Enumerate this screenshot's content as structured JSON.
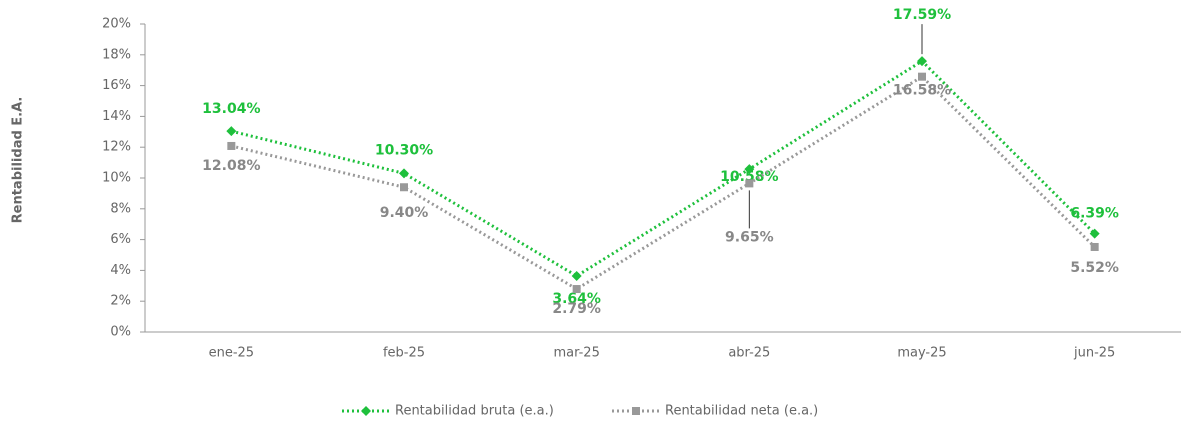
{
  "chart_data": {
    "type": "line",
    "y_label": "Rentabilidad E.A.",
    "categories": [
      "ene-25",
      "feb-25",
      "mar-25",
      "abr-25",
      "may-25",
      "jun-25"
    ],
    "series": [
      {
        "name": "Rentabilidad bruta (e.a.)",
        "color": "#1ec03c",
        "marker": "diamond",
        "values": [
          13.04,
          10.3,
          3.64,
          10.58,
          17.59,
          6.39
        ],
        "value_labels": [
          "13.04%",
          "10.30%",
          "3.64%",
          "10.58%",
          "17.59%",
          "6.39%"
        ]
      },
      {
        "name": "Rentabilidad neta (e.a.)",
        "color": "#999999",
        "marker": "square",
        "values": [
          12.08,
          9.4,
          2.79,
          9.65,
          16.58,
          5.52
        ],
        "value_labels": [
          "12.08%",
          "9.40%",
          "2.79%",
          "9.65%",
          "16.58%",
          "5.52%"
        ]
      }
    ],
    "ylim": [
      0,
      20
    ],
    "yticks": [
      {
        "value": 0,
        "label": "0%"
      },
      {
        "value": 2,
        "label": "2%"
      },
      {
        "value": 4,
        "label": "4%"
      },
      {
        "value": 6,
        "label": "6%"
      },
      {
        "value": 8,
        "label": "8%"
      },
      {
        "value": 10,
        "label": "10%"
      },
      {
        "value": 12,
        "label": "12%"
      },
      {
        "value": 14,
        "label": "14%"
      },
      {
        "value": 16,
        "label": "16%"
      },
      {
        "value": 18,
        "label": "18%"
      },
      {
        "value": 20,
        "label": "20%"
      }
    ],
    "grid": false,
    "legend": "bottom"
  }
}
